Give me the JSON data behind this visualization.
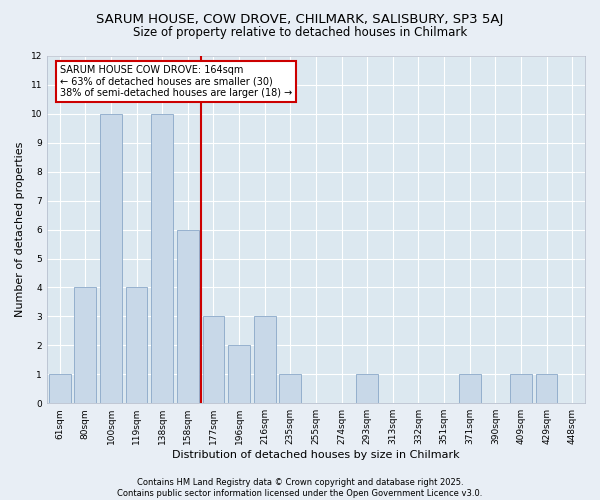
{
  "title1": "SARUM HOUSE, COW DROVE, CHILMARK, SALISBURY, SP3 5AJ",
  "title2": "Size of property relative to detached houses in Chilmark",
  "xlabel": "Distribution of detached houses by size in Chilmark",
  "ylabel": "Number of detached properties",
  "categories": [
    "61sqm",
    "80sqm",
    "100sqm",
    "119sqm",
    "138sqm",
    "158sqm",
    "177sqm",
    "196sqm",
    "216sqm",
    "235sqm",
    "255sqm",
    "274sqm",
    "293sqm",
    "313sqm",
    "332sqm",
    "351sqm",
    "371sqm",
    "390sqm",
    "409sqm",
    "429sqm",
    "448sqm"
  ],
  "values": [
    1,
    4,
    10,
    4,
    10,
    6,
    3,
    2,
    3,
    1,
    0,
    0,
    1,
    0,
    0,
    0,
    1,
    0,
    1,
    1,
    0
  ],
  "bar_color": "#c8d8e8",
  "bar_edge_color": "#8aa8c8",
  "red_line_index": 5.5,
  "annotation_text": "SARUM HOUSE COW DROVE: 164sqm\n← 63% of detached houses are smaller (30)\n38% of semi-detached houses are larger (18) →",
  "annotation_box_color": "#ffffff",
  "annotation_box_edge": "#cc0000",
  "red_line_color": "#cc0000",
  "ylim": [
    0,
    12
  ],
  "yticks": [
    0,
    1,
    2,
    3,
    4,
    5,
    6,
    7,
    8,
    9,
    10,
    11,
    12
  ],
  "footer": "Contains HM Land Registry data © Crown copyright and database right 2025.\nContains public sector information licensed under the Open Government Licence v3.0.",
  "fig_facecolor": "#e8eef5",
  "ax_facecolor": "#dce8f0",
  "grid_color": "#ffffff",
  "title_fontsize": 9.5,
  "subtitle_fontsize": 8.5,
  "tick_fontsize": 6.5,
  "label_fontsize": 8,
  "annotation_fontsize": 7,
  "footer_fontsize": 6
}
